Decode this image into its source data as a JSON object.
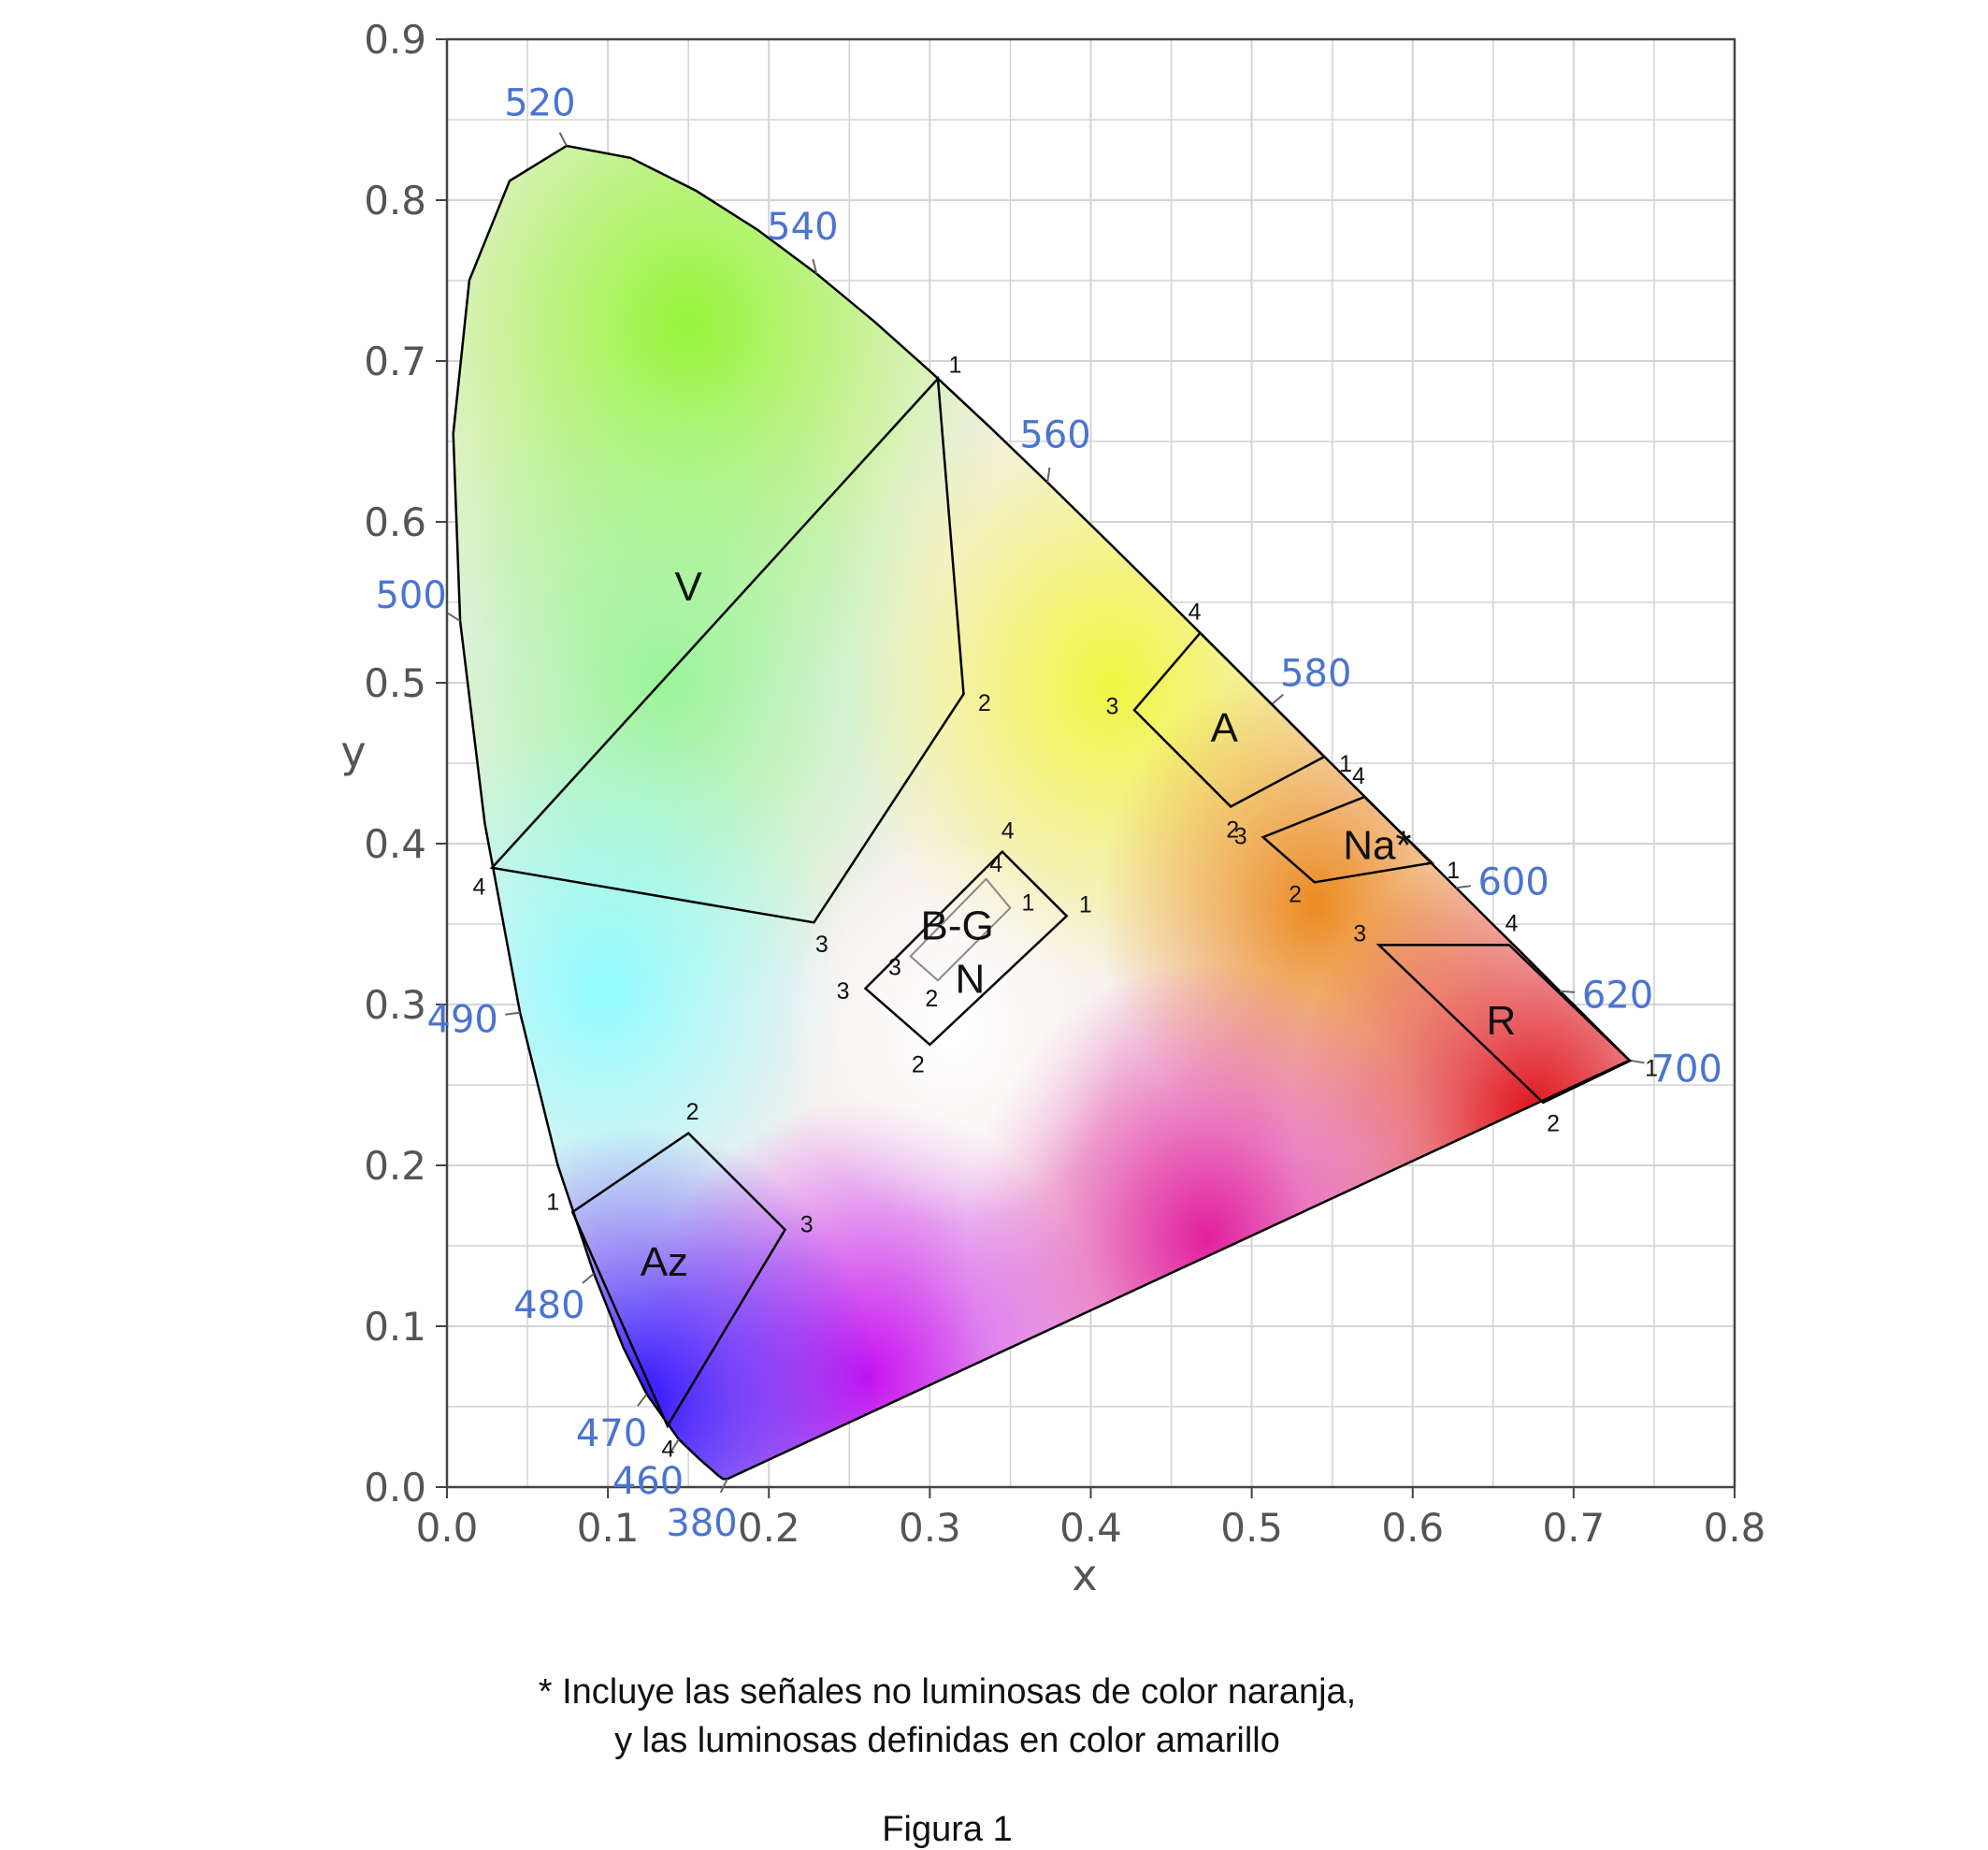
{
  "chart_data": {
    "type": "scatter",
    "subtype": "CIE 1931 chromaticity diagram with signal colour regions",
    "xlabel": "x",
    "ylabel": "y",
    "xlim": [
      0.0,
      0.8
    ],
    "ylim": [
      0.0,
      0.9
    ],
    "xticks": [
      "0.0",
      "0.1",
      "0.2",
      "0.3",
      "0.4",
      "0.5",
      "0.6",
      "0.7",
      "0.8"
    ],
    "yticks": [
      "0.0",
      "0.1",
      "0.2",
      "0.3",
      "0.4",
      "0.5",
      "0.6",
      "0.7",
      "0.8",
      "0.9"
    ],
    "grid": true,
    "spectral_locus_labels": [
      {
        "text": "380",
        "nm": 380,
        "x": 0.1741,
        "y": 0.005
      },
      {
        "text": "460",
        "nm": 460,
        "x": 0.144,
        "y": 0.0297
      },
      {
        "text": "470",
        "nm": 470,
        "x": 0.1241,
        "y": 0.0578
      },
      {
        "text": "480",
        "nm": 480,
        "x": 0.0913,
        "y": 0.1327
      },
      {
        "text": "490",
        "nm": 490,
        "x": 0.0454,
        "y": 0.295
      },
      {
        "text": "500",
        "nm": 500,
        "x": 0.0082,
        "y": 0.5384
      },
      {
        "text": "520",
        "nm": 520,
        "x": 0.0743,
        "y": 0.8338
      },
      {
        "text": "540",
        "nm": 540,
        "x": 0.2296,
        "y": 0.7543
      },
      {
        "text": "560",
        "nm": 560,
        "x": 0.3731,
        "y": 0.6245
      },
      {
        "text": "580",
        "nm": 580,
        "x": 0.5125,
        "y": 0.4866
      },
      {
        "text": "600",
        "nm": 600,
        "x": 0.627,
        "y": 0.3725
      },
      {
        "text": "620",
        "nm": 620,
        "x": 0.6915,
        "y": 0.3083
      },
      {
        "text": "700",
        "nm": 700,
        "x": 0.7347,
        "y": 0.2653
      }
    ],
    "spectral_locus": [
      [
        0.1741,
        0.005
      ],
      [
        0.1714,
        0.0051
      ],
      [
        0.1689,
        0.0069
      ],
      [
        0.1644,
        0.0109
      ],
      [
        0.1566,
        0.0177
      ],
      [
        0.144,
        0.0297
      ],
      [
        0.1241,
        0.0578
      ],
      [
        0.1096,
        0.0868
      ],
      [
        0.0913,
        0.1327
      ],
      [
        0.0687,
        0.2007
      ],
      [
        0.0454,
        0.295
      ],
      [
        0.0235,
        0.4127
      ],
      [
        0.0082,
        0.5384
      ],
      [
        0.0039,
        0.6548
      ],
      [
        0.0139,
        0.7502
      ],
      [
        0.0389,
        0.812
      ],
      [
        0.0743,
        0.8338
      ],
      [
        0.1142,
        0.8262
      ],
      [
        0.1547,
        0.8059
      ],
      [
        0.1929,
        0.7816
      ],
      [
        0.2296,
        0.7543
      ],
      [
        0.2658,
        0.7243
      ],
      [
        0.3016,
        0.6923
      ],
      [
        0.3373,
        0.6589
      ],
      [
        0.3731,
        0.6245
      ],
      [
        0.4087,
        0.5896
      ],
      [
        0.4441,
        0.5547
      ],
      [
        0.4788,
        0.5202
      ],
      [
        0.5125,
        0.4866
      ],
      [
        0.5448,
        0.4544
      ],
      [
        0.5752,
        0.4242
      ],
      [
        0.6029,
        0.3965
      ],
      [
        0.627,
        0.3725
      ],
      [
        0.6482,
        0.3514
      ],
      [
        0.6658,
        0.334
      ],
      [
        0.6801,
        0.3197
      ],
      [
        0.6915,
        0.3083
      ],
      [
        0.7006,
        0.2993
      ],
      [
        0.7079,
        0.292
      ],
      [
        0.714,
        0.2859
      ],
      [
        0.719,
        0.2809
      ],
      [
        0.723,
        0.277
      ],
      [
        0.726,
        0.274
      ],
      [
        0.7283,
        0.2717
      ],
      [
        0.73,
        0.27
      ],
      [
        0.7347,
        0.2653
      ]
    ],
    "regions": [
      {
        "name": "V",
        "center": [
          0.15,
          0.56
        ],
        "vertices": [
          {
            "label": "1",
            "x": 0.305,
            "y": 0.689
          },
          {
            "label": "2",
            "x": 0.321,
            "y": 0.493
          },
          {
            "label": "3",
            "x": 0.228,
            "y": 0.351
          },
          {
            "label": "4",
            "x": 0.028,
            "y": 0.385
          }
        ]
      },
      {
        "name": "Az",
        "center": [
          0.135,
          0.14
        ],
        "vertices": [
          {
            "label": "1",
            "x": 0.078,
            "y": 0.171
          },
          {
            "label": "2",
            "x": 0.15,
            "y": 0.22
          },
          {
            "label": "3",
            "x": 0.21,
            "y": 0.16
          },
          {
            "label": "4",
            "x": 0.137,
            "y": 0.038
          }
        ]
      },
      {
        "name": "A",
        "center": [
          0.483,
          0.472
        ],
        "vertices": [
          {
            "label": "1",
            "x": 0.545,
            "y": 0.454
          },
          {
            "label": "2",
            "x": 0.487,
            "y": 0.423
          },
          {
            "label": "3",
            "x": 0.427,
            "y": 0.483
          },
          {
            "label": "4",
            "x": 0.468,
            "y": 0.531
          }
        ]
      },
      {
        "name": "Na*",
        "center": [
          0.578,
          0.399
        ],
        "vertices": [
          {
            "label": "1",
            "x": 0.612,
            "y": 0.388
          },
          {
            "label": "2",
            "x": 0.539,
            "y": 0.376
          },
          {
            "label": "3",
            "x": 0.507,
            "y": 0.404
          },
          {
            "label": "4",
            "x": 0.57,
            "y": 0.429
          }
        ]
      },
      {
        "name": "R",
        "center": [
          0.655,
          0.29
        ],
        "vertices": [
          {
            "label": "1",
            "x": 0.735,
            "y": 0.265
          },
          {
            "label": "2",
            "x": 0.681,
            "y": 0.239
          },
          {
            "label": "3",
            "x": 0.579,
            "y": 0.337
          },
          {
            "label": "4",
            "x": 0.66,
            "y": 0.337
          }
        ]
      },
      {
        "name": "N",
        "center": [
          0.325,
          0.316
        ],
        "vertices": [
          {
            "label": "1",
            "x": 0.385,
            "y": 0.355
          },
          {
            "label": "2",
            "x": 0.3,
            "y": 0.275
          },
          {
            "label": "3",
            "x": 0.26,
            "y": 0.31
          },
          {
            "label": "4",
            "x": 0.345,
            "y": 0.395
          }
        ]
      },
      {
        "name": "B-G",
        "center": [
          0.317,
          0.349
        ],
        "muted": true,
        "vertices": [
          {
            "label": "1",
            "x": 0.35,
            "y": 0.36
          },
          {
            "label": "2",
            "x": 0.305,
            "y": 0.315
          },
          {
            "label": "3",
            "x": 0.288,
            "y": 0.33
          },
          {
            "label": "4",
            "x": 0.335,
            "y": 0.378
          }
        ]
      }
    ],
    "colors": {
      "grid": "#d3d3d3",
      "axis": "#555555",
      "wavelength_label": "#4a74d0",
      "region_line": "#000000",
      "muted_region": "#8a8a8a"
    }
  },
  "footnote": {
    "line1": "*  Incluye las señales no luminosas de color naranja,",
    "line2": "y las luminosas definidas en color amarillo"
  },
  "figure_label": "Figura 1"
}
